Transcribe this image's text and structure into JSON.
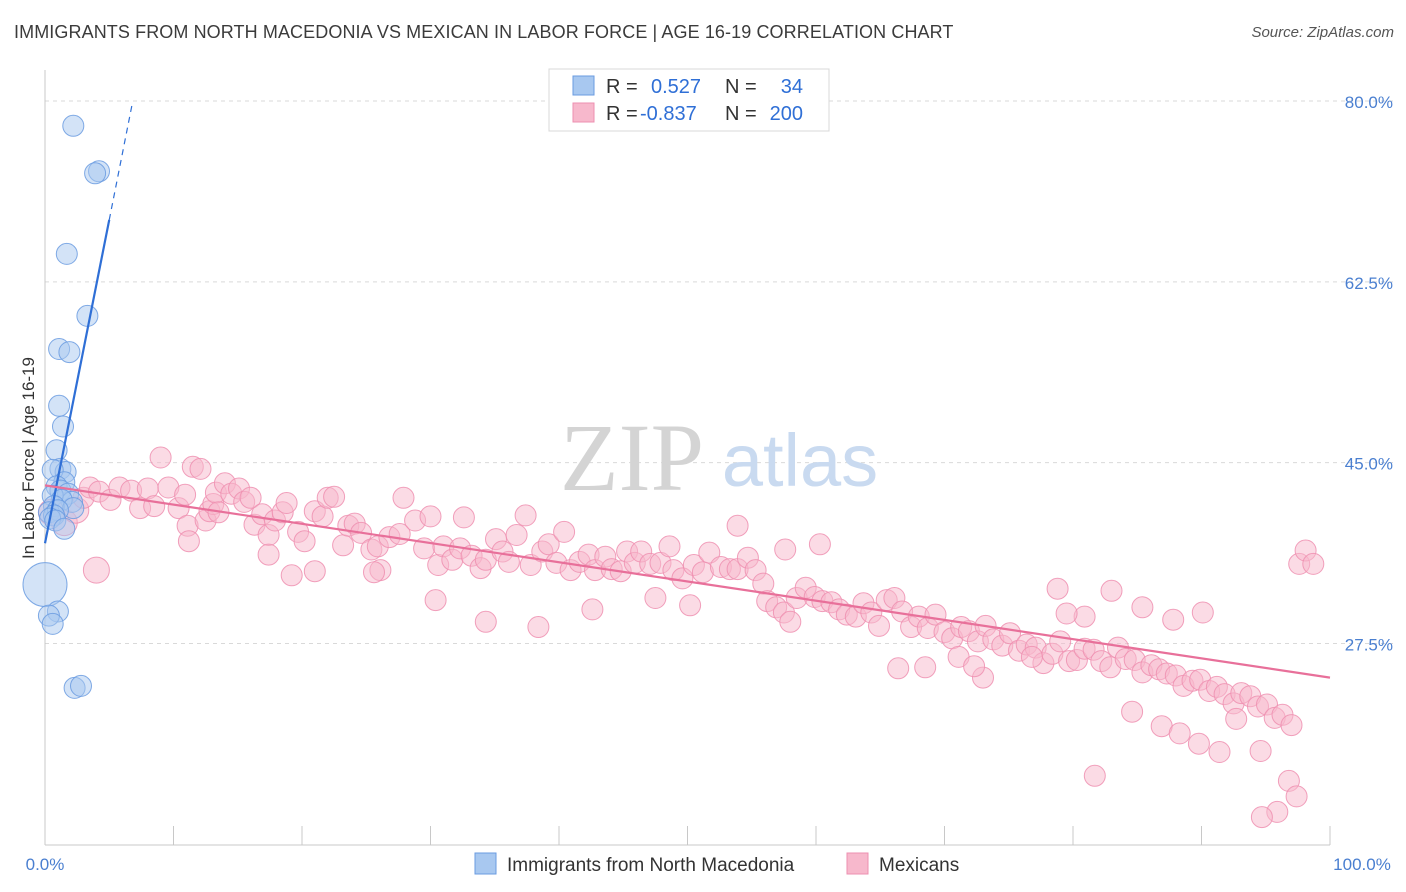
{
  "title": "IMMIGRANTS FROM NORTH MACEDONIA VS MEXICAN IN LABOR FORCE | AGE 16-19 CORRELATION CHART",
  "source": "Source: ZipAtlas.com",
  "watermark": {
    "zip": "ZIP",
    "atlas": "atlas"
  },
  "colors": {
    "blue_fill": "#a8c8f0",
    "blue_stroke": "#6a9be0",
    "blue_line": "#2f6fd6",
    "pink_fill": "#f7b8cc",
    "pink_stroke": "#ee8fb0",
    "pink_line": "#e8709a",
    "tick_text": "#4a7fd0",
    "grid": "#d9d9d9"
  },
  "legend": {
    "rows": [
      {
        "r_label": "R =",
        "r_value": "0.527",
        "n_label": "N =",
        "n_value": "34"
      },
      {
        "r_label": "R =",
        "r_value": "-0.837",
        "n_label": "N =",
        "n_value": "200"
      }
    ]
  },
  "chart_data": {
    "type": "scatter",
    "title": "IMMIGRANTS FROM NORTH MACEDONIA VS MEXICAN IN LABOR FORCE | AGE 16-19 CORRELATION CHART",
    "xlabel": "",
    "ylabel": "In Labor Force | Age 16-19",
    "xlim": [
      0,
      100
    ],
    "ylim": [
      8,
      83
    ],
    "x_tick_labels": [
      "0.0%",
      "100.0%"
    ],
    "y_ticks": [
      27.5,
      45.0,
      62.5,
      80.0
    ],
    "y_tick_labels": [
      "27.5%",
      "45.0%",
      "62.5%",
      "80.0%"
    ],
    "grid": true,
    "series": [
      {
        "name": "Immigrants from North Macedonia",
        "r": 0.527,
        "n": 34,
        "trend": {
          "x_start": 0.0,
          "y_start": 37.2,
          "x_end": 5.0,
          "y_end": 68.5,
          "dash_x_end": 6.8,
          "dash_y_end": 79.8
        },
        "points": [
          [
            2.2,
            77.6,
            1
          ],
          [
            4.2,
            73.2,
            1
          ],
          [
            3.9,
            73.0,
            1
          ],
          [
            1.7,
            65.2,
            1
          ],
          [
            3.3,
            59.2,
            1
          ],
          [
            1.1,
            56.0,
            1
          ],
          [
            1.9,
            55.7,
            1
          ],
          [
            1.1,
            50.5,
            1
          ],
          [
            1.4,
            48.5,
            1
          ],
          [
            0.9,
            46.2,
            1
          ],
          [
            1.2,
            44.4,
            1
          ],
          [
            1.6,
            44.1,
            1
          ],
          [
            0.6,
            44.3,
            1
          ],
          [
            1.5,
            43.1,
            1
          ],
          [
            0.9,
            42.7,
            1
          ],
          [
            1.2,
            42.3,
            1
          ],
          [
            1.8,
            42.0,
            1
          ],
          [
            2.1,
            41.2,
            1
          ],
          [
            0.6,
            41.8,
            1
          ],
          [
            1.3,
            41.4,
            1
          ],
          [
            0.7,
            40.8,
            1
          ],
          [
            2.2,
            40.6,
            1
          ],
          [
            0.3,
            40.2,
            1
          ],
          [
            1.0,
            40.4,
            1
          ],
          [
            0.7,
            39.9,
            1
          ],
          [
            0.4,
            39.6,
            1
          ],
          [
            0.8,
            39.4,
            1
          ],
          [
            1.5,
            38.6,
            1
          ],
          [
            0.0,
            33.2,
            3
          ],
          [
            1.0,
            30.6,
            1
          ],
          [
            0.3,
            30.2,
            1
          ],
          [
            0.6,
            29.4,
            1
          ],
          [
            2.3,
            23.2,
            1
          ],
          [
            2.8,
            23.4,
            1
          ]
        ]
      },
      {
        "name": "Mexicans",
        "r": -0.837,
        "n": 200,
        "trend": {
          "x_start": 0.0,
          "y_start": 42.8,
          "x_end": 100.0,
          "y_end": 24.2
        },
        "points": [
          [
            0.5,
            40.2,
            2
          ],
          [
            1.5,
            39.2,
            2
          ],
          [
            2.4,
            40.4,
            2
          ],
          [
            3.0,
            41.6,
            1
          ],
          [
            3.5,
            42.6,
            1
          ],
          [
            4.2,
            42.2,
            1
          ],
          [
            5.1,
            41.4,
            1
          ],
          [
            5.8,
            42.6,
            1
          ],
          [
            6.7,
            42.3,
            1
          ],
          [
            7.4,
            40.6,
            1
          ],
          [
            8.0,
            42.5,
            1
          ],
          [
            8.5,
            40.8,
            1
          ],
          [
            9.0,
            45.5,
            1
          ],
          [
            9.6,
            42.6,
            1
          ],
          [
            10.4,
            40.6,
            1
          ],
          [
            10.9,
            41.9,
            1
          ],
          [
            11.1,
            38.9,
            1
          ],
          [
            11.5,
            44.6,
            1
          ],
          [
            12.1,
            44.4,
            1
          ],
          [
            12.5,
            39.4,
            1
          ],
          [
            12.8,
            40.3,
            1
          ],
          [
            13.1,
            41.0,
            1
          ],
          [
            13.3,
            42.1,
            1
          ],
          [
            13.5,
            40.2,
            1
          ],
          [
            14.0,
            43.0,
            1
          ],
          [
            14.5,
            42.0,
            1
          ],
          [
            15.1,
            42.5,
            1
          ],
          [
            15.5,
            41.2,
            1
          ],
          [
            16.0,
            41.6,
            1
          ],
          [
            16.3,
            39.0,
            1
          ],
          [
            16.9,
            40.0,
            1
          ],
          [
            17.4,
            38.0,
            1
          ],
          [
            17.9,
            39.4,
            1
          ],
          [
            18.5,
            40.2,
            1
          ],
          [
            18.8,
            41.1,
            1
          ],
          [
            19.2,
            34.1,
            1
          ],
          [
            19.7,
            38.3,
            1
          ],
          [
            20.2,
            37.4,
            1
          ],
          [
            21.0,
            40.3,
            1
          ],
          [
            21.6,
            39.8,
            1
          ],
          [
            22.0,
            41.6,
            1
          ],
          [
            22.5,
            41.7,
            1
          ],
          [
            23.2,
            37.0,
            1
          ],
          [
            23.6,
            38.9,
            1
          ],
          [
            24.1,
            39.1,
            1
          ],
          [
            24.6,
            38.2,
            1
          ],
          [
            25.4,
            36.6,
            1
          ],
          [
            25.9,
            36.9,
            1
          ],
          [
            26.1,
            34.6,
            1
          ],
          [
            26.8,
            37.8,
            1
          ],
          [
            27.6,
            38.1,
            1
          ],
          [
            27.9,
            41.6,
            1
          ],
          [
            28.8,
            39.4,
            1
          ],
          [
            29.5,
            36.7,
            1
          ],
          [
            30.0,
            39.8,
            1
          ],
          [
            30.6,
            35.1,
            1
          ],
          [
            31.0,
            36.9,
            1
          ],
          [
            31.7,
            35.6,
            1
          ],
          [
            32.3,
            36.7,
            1
          ],
          [
            32.6,
            39.7,
            1
          ],
          [
            33.2,
            36.0,
            1
          ],
          [
            33.9,
            34.8,
            1
          ],
          [
            34.3,
            35.6,
            1
          ],
          [
            35.1,
            37.6,
            1
          ],
          [
            35.6,
            36.4,
            1
          ],
          [
            36.1,
            35.4,
            1
          ],
          [
            36.7,
            38.0,
            1
          ],
          [
            37.4,
            39.9,
            1
          ],
          [
            37.8,
            35.1,
            1
          ],
          [
            38.7,
            36.4,
            1
          ],
          [
            39.2,
            37.1,
            1
          ],
          [
            39.8,
            35.3,
            1
          ],
          [
            40.4,
            38.3,
            1
          ],
          [
            40.9,
            34.6,
            1
          ],
          [
            41.6,
            35.4,
            1
          ],
          [
            42.3,
            36.1,
            1
          ],
          [
            42.8,
            34.6,
            1
          ],
          [
            43.6,
            35.9,
            1
          ],
          [
            44.1,
            34.7,
            1
          ],
          [
            44.8,
            34.5,
            1
          ],
          [
            45.3,
            36.4,
            1
          ],
          [
            45.9,
            35.3,
            1
          ],
          [
            46.4,
            36.4,
            1
          ],
          [
            47.1,
            35.2,
            1
          ],
          [
            47.9,
            35.3,
            1
          ],
          [
            48.6,
            36.9,
            1
          ],
          [
            48.9,
            34.6,
            1
          ],
          [
            49.6,
            33.8,
            1
          ],
          [
            50.5,
            35.1,
            1
          ],
          [
            51.2,
            34.4,
            1
          ],
          [
            51.7,
            36.3,
            1
          ],
          [
            52.6,
            34.9,
            1
          ],
          [
            53.3,
            34.7,
            1
          ],
          [
            53.9,
            34.7,
            1
          ],
          [
            54.7,
            35.8,
            1
          ],
          [
            55.3,
            34.6,
            1
          ],
          [
            55.9,
            33.3,
            1
          ],
          [
            56.2,
            31.6,
            1
          ],
          [
            56.9,
            31.0,
            1
          ],
          [
            57.5,
            30.5,
            1
          ],
          [
            58.0,
            29.6,
            1
          ],
          [
            58.5,
            31.9,
            1
          ],
          [
            59.2,
            32.9,
            1
          ],
          [
            59.9,
            32.0,
            1
          ],
          [
            60.5,
            31.6,
            1
          ],
          [
            61.2,
            31.5,
            1
          ],
          [
            61.8,
            30.8,
            1
          ],
          [
            62.4,
            30.3,
            1
          ],
          [
            63.1,
            30.1,
            1
          ],
          [
            63.7,
            31.4,
            1
          ],
          [
            64.3,
            30.5,
            1
          ],
          [
            64.9,
            29.2,
            1
          ],
          [
            65.5,
            31.7,
            1
          ],
          [
            66.1,
            31.9,
            1
          ],
          [
            66.7,
            30.6,
            1
          ],
          [
            67.4,
            29.1,
            1
          ],
          [
            68.0,
            30.1,
            1
          ],
          [
            68.7,
            29.0,
            1
          ],
          [
            69.3,
            30.3,
            1
          ],
          [
            70.0,
            28.6,
            1
          ],
          [
            70.6,
            28.0,
            1
          ],
          [
            71.3,
            29.1,
            1
          ],
          [
            71.9,
            28.7,
            1
          ],
          [
            72.6,
            27.7,
            1
          ],
          [
            73.2,
            29.2,
            1
          ],
          [
            73.8,
            27.9,
            1
          ],
          [
            74.5,
            27.3,
            1
          ],
          [
            75.1,
            28.5,
            1
          ],
          [
            75.8,
            26.8,
            1
          ],
          [
            76.4,
            27.4,
            1
          ],
          [
            77.1,
            27.1,
            1
          ],
          [
            77.7,
            25.6,
            1
          ],
          [
            78.4,
            26.5,
            1
          ],
          [
            79.0,
            27.7,
            1
          ],
          [
            79.7,
            25.8,
            1
          ],
          [
            80.3,
            25.9,
            1
          ],
          [
            80.9,
            27.0,
            1
          ],
          [
            81.6,
            26.9,
            1
          ],
          [
            82.2,
            25.8,
            1
          ],
          [
            82.9,
            25.2,
            1
          ],
          [
            83.5,
            27.1,
            1
          ],
          [
            84.1,
            26.0,
            1
          ],
          [
            84.8,
            25.9,
            1
          ],
          [
            85.4,
            24.7,
            1
          ],
          [
            86.1,
            25.4,
            1
          ],
          [
            86.7,
            25.0,
            1
          ],
          [
            87.3,
            24.6,
            1
          ],
          [
            88.0,
            24.4,
            1
          ],
          [
            88.6,
            23.4,
            1
          ],
          [
            89.3,
            23.9,
            1
          ],
          [
            89.9,
            24.0,
            1
          ],
          [
            90.6,
            22.9,
            1
          ],
          [
            91.2,
            23.3,
            1
          ],
          [
            91.8,
            22.6,
            1
          ],
          [
            92.5,
            21.7,
            1
          ],
          [
            93.1,
            22.7,
            1
          ],
          [
            93.8,
            22.4,
            1
          ],
          [
            94.4,
            21.4,
            1
          ],
          [
            95.1,
            21.6,
            1
          ],
          [
            95.7,
            20.3,
            1
          ],
          [
            96.3,
            20.6,
            1
          ],
          [
            97.0,
            19.6,
            1
          ],
          [
            97.6,
            35.2,
            1
          ],
          [
            98.1,
            36.5,
            1
          ],
          [
            98.7,
            35.2,
            1
          ],
          [
            96.8,
            14.2,
            1
          ],
          [
            97.4,
            12.7,
            1
          ],
          [
            95.9,
            11.2,
            1
          ],
          [
            94.7,
            10.7,
            1
          ],
          [
            81.7,
            14.7,
            1
          ],
          [
            73.0,
            24.2,
            1
          ],
          [
            76.8,
            26.2,
            1
          ],
          [
            78.8,
            32.8,
            1
          ],
          [
            84.6,
            20.9,
            1
          ],
          [
            86.9,
            19.5,
            1
          ],
          [
            88.3,
            18.8,
            1
          ],
          [
            89.8,
            17.8,
            1
          ],
          [
            91.4,
            17.0,
            1
          ],
          [
            94.6,
            17.1,
            1
          ],
          [
            92.7,
            20.2,
            1
          ],
          [
            90.1,
            30.5,
            1
          ],
          [
            87.8,
            29.8,
            1
          ],
          [
            85.4,
            31.0,
            1
          ],
          [
            83.0,
            32.6,
            1
          ],
          [
            80.9,
            30.1,
            1
          ],
          [
            79.5,
            30.4,
            1
          ],
          [
            66.4,
            25.1,
            1
          ],
          [
            68.5,
            25.2,
            1
          ],
          [
            71.1,
            26.2,
            1
          ],
          [
            72.3,
            25.3,
            1
          ],
          [
            50.2,
            31.2,
            1
          ],
          [
            47.5,
            31.9,
            1
          ],
          [
            42.6,
            30.8,
            1
          ],
          [
            38.4,
            29.1,
            1
          ],
          [
            34.3,
            29.6,
            1
          ],
          [
            30.4,
            31.7,
            1
          ],
          [
            25.6,
            34.4,
            1
          ],
          [
            21.0,
            34.5,
            1
          ],
          [
            17.4,
            36.1,
            1
          ],
          [
            11.2,
            37.4,
            1
          ],
          [
            4.0,
            34.6,
            2
          ],
          [
            53.9,
            38.9,
            1
          ],
          [
            57.6,
            36.6,
            1
          ],
          [
            60.3,
            37.1,
            1
          ]
        ]
      }
    ]
  },
  "bottom_legend": [
    {
      "label": "Immigrants from North Macedonia"
    },
    {
      "label": "Mexicans"
    }
  ]
}
